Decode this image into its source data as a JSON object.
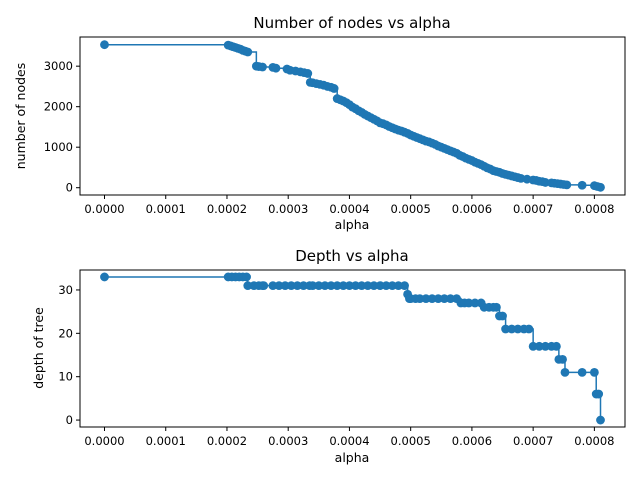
{
  "figure": {
    "background": "#ffffff",
    "series_color": "#1f77b4"
  },
  "chart_data": [
    {
      "type": "line",
      "title": "Number of nodes vs alpha",
      "xlabel": "alpha",
      "ylabel": "number of nodes",
      "xlim": [
        -4e-05,
        0.00085
      ],
      "ylim": [
        -180,
        3720
      ],
      "xticks": [
        0.0,
        0.0001,
        0.0002,
        0.0003,
        0.0004,
        0.0005,
        0.0006,
        0.0007,
        0.0008
      ],
      "xtick_labels": [
        "0.0000",
        "0.0001",
        "0.0002",
        "0.0003",
        "0.0004",
        "0.0005",
        "0.0006",
        "0.0007",
        "0.0008"
      ],
      "yticks": [
        0,
        1000,
        2000,
        3000
      ],
      "ytick_labels": [
        "0",
        "1000",
        "2000",
        "3000"
      ],
      "drawstyle": "steps-post",
      "marker": "circle",
      "grid": false,
      "series": [
        {
          "x": [
            0.0,
            0.000202,
            0.000206,
            0.00021,
            0.000214,
            0.000218,
            0.000222,
            0.000226,
            0.00023,
            0.000234,
            0.000248,
            0.000252,
            0.000258,
            0.000275,
            0.00028,
            0.000298,
            0.000303,
            0.000312,
            0.00032,
            0.000326,
            0.000332,
            0.000336,
            0.00034,
            0.000346,
            0.000352,
            0.000358,
            0.000364,
            0.00037,
            0.000375,
            0.00038,
            0.000385,
            0.00039,
            0.000395,
            0.0004,
            0.000405,
            0.00041,
            0.000415,
            0.00042,
            0.000425,
            0.00043,
            0.000435,
            0.00044,
            0.000445,
            0.00045,
            0.000455,
            0.00046,
            0.000465,
            0.00047,
            0.000475,
            0.00048,
            0.000485,
            0.00049,
            0.000495,
            0.0005,
            0.000505,
            0.00051,
            0.000515,
            0.00052,
            0.000525,
            0.00053,
            0.000535,
            0.00054,
            0.000545,
            0.00055,
            0.000555,
            0.00056,
            0.000565,
            0.00057,
            0.000575,
            0.00058,
            0.000585,
            0.00059,
            0.000595,
            0.0006,
            0.000605,
            0.00061,
            0.000615,
            0.00062,
            0.000625,
            0.00063,
            0.000635,
            0.00064,
            0.000645,
            0.00065,
            0.000655,
            0.00066,
            0.000665,
            0.00067,
            0.000675,
            0.00068,
            0.00069,
            0.0007,
            0.000705,
            0.00071,
            0.000715,
            0.00072,
            0.00073,
            0.000735,
            0.00074,
            0.000745,
            0.00075,
            0.000755,
            0.00078,
            0.0008,
            0.000805,
            0.00081
          ],
          "y": [
            3530,
            3520,
            3500,
            3480,
            3460,
            3440,
            3420,
            3390,
            3370,
            3350,
            3000,
            2990,
            2980,
            2970,
            2950,
            2930,
            2900,
            2880,
            2860,
            2840,
            2820,
            2600,
            2590,
            2570,
            2550,
            2530,
            2500,
            2480,
            2450,
            2200,
            2170,
            2140,
            2100,
            2050,
            1990,
            1950,
            1900,
            1860,
            1810,
            1770,
            1730,
            1690,
            1650,
            1600,
            1580,
            1550,
            1510,
            1480,
            1450,
            1420,
            1400,
            1370,
            1340,
            1300,
            1270,
            1240,
            1210,
            1180,
            1150,
            1130,
            1100,
            1070,
            1030,
            1000,
            970,
            940,
            910,
            880,
            850,
            800,
            770,
            730,
            700,
            670,
            630,
            600,
            570,
            530,
            490,
            460,
            420,
            400,
            380,
            350,
            330,
            310,
            290,
            270,
            250,
            230,
            210,
            190,
            180,
            160,
            150,
            130,
            120,
            110,
            100,
            90,
            80,
            70,
            60,
            50,
            30,
            10
          ]
        }
      ]
    },
    {
      "type": "line",
      "title": "Depth vs alpha",
      "xlabel": "alpha",
      "ylabel": "depth of tree",
      "xlim": [
        -4e-05,
        0.00085
      ],
      "ylim": [
        -1.6,
        34.6
      ],
      "xticks": [
        0.0,
        0.0001,
        0.0002,
        0.0003,
        0.0004,
        0.0005,
        0.0006,
        0.0007,
        0.0008
      ],
      "xtick_labels": [
        "0.0000",
        "0.0001",
        "0.0002",
        "0.0003",
        "0.0004",
        "0.0005",
        "0.0006",
        "0.0007",
        "0.0008"
      ],
      "yticks": [
        0,
        10,
        20,
        30
      ],
      "ytick_labels": [
        "0",
        "10",
        "20",
        "30"
      ],
      "drawstyle": "steps-post",
      "marker": "circle",
      "grid": false,
      "series": [
        {
          "x": [
            0.0,
            0.000202,
            0.000208,
            0.000214,
            0.00022,
            0.000226,
            0.000232,
            0.000234,
            0.000244,
            0.000252,
            0.000258,
            0.00026,
            0.000275,
            0.000285,
            0.000295,
            0.000305,
            0.000315,
            0.000325,
            0.000335,
            0.00034,
            0.00035,
            0.00036,
            0.00037,
            0.00038,
            0.00039,
            0.0004,
            0.00041,
            0.00042,
            0.00043,
            0.00044,
            0.00045,
            0.00046,
            0.00047,
            0.00048,
            0.00049,
            0.000495,
            0.000498,
            0.0005,
            0.000508,
            0.000515,
            0.000525,
            0.000535,
            0.000545,
            0.000555,
            0.000565,
            0.000575,
            0.000582,
            0.000588,
            0.000595,
            0.000605,
            0.000615,
            0.00062,
            0.000628,
            0.000635,
            0.00064,
            0.000645,
            0.00065,
            0.000655,
            0.000665,
            0.000675,
            0.000685,
            0.000693,
            0.0007,
            0.00071,
            0.00072,
            0.00073,
            0.000738,
            0.000742,
            0.000748,
            0.000752,
            0.00078,
            0.0008,
            0.000803,
            0.000807,
            0.00081
          ],
          "y": [
            33,
            33,
            33,
            33,
            33,
            33,
            33,
            31,
            31,
            31,
            31,
            31,
            31,
            31,
            31,
            31,
            31,
            31,
            31,
            31,
            31,
            31,
            31,
            31,
            31,
            31,
            31,
            31,
            31,
            31,
            31,
            31,
            31,
            31,
            31,
            29,
            28,
            28,
            28,
            28,
            28,
            28,
            28,
            28,
            28,
            28,
            27,
            27,
            27,
            27,
            27,
            26,
            26,
            26,
            26,
            24,
            24,
            21,
            21,
            21,
            21,
            21,
            17,
            17,
            17,
            17,
            17,
            14,
            14,
            11,
            11,
            11,
            6,
            6,
            0
          ]
        }
      ]
    }
  ]
}
